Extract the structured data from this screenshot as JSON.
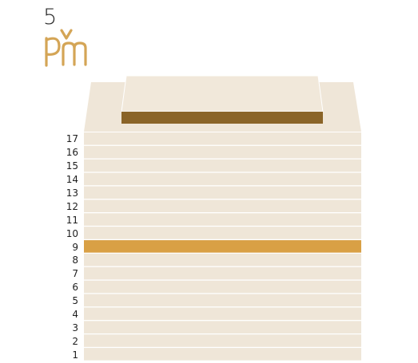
{
  "logo": {
    "number": "5",
    "letters": "pvm",
    "colors": {
      "number": "#2c2c2c",
      "letters": "#d4a556"
    }
  },
  "colors": {
    "floor": "#efe6d8",
    "floor_divider": "#ffffff",
    "highlight_floor": "#d9a045",
    "roof": "#efe6d8",
    "roof_band": "#8a6428",
    "penthouse": "#f1e8da"
  },
  "building": {
    "highlighted_floor": "9",
    "floors": [
      {
        "label": "17"
      },
      {
        "label": "16"
      },
      {
        "label": "15"
      },
      {
        "label": "14"
      },
      {
        "label": "13"
      },
      {
        "label": "12"
      },
      {
        "label": "11"
      },
      {
        "label": "10"
      },
      {
        "label": "9"
      },
      {
        "label": "8"
      },
      {
        "label": "7"
      },
      {
        "label": "6"
      },
      {
        "label": "5"
      },
      {
        "label": "4"
      },
      {
        "label": "3"
      },
      {
        "label": "2"
      },
      {
        "label": "1"
      }
    ]
  }
}
